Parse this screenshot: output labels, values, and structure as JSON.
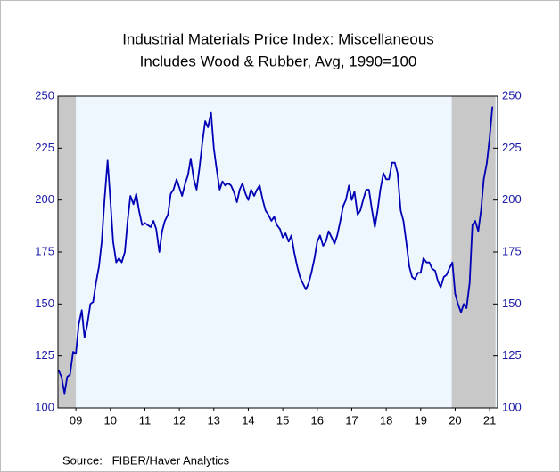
{
  "chart_data": {
    "type": "line",
    "title": "Industrial Materials Price Index: Miscellaneous",
    "subtitle": "Includes Wood & Rubber, Avg, 1990=100",
    "source": "Source:   FIBER/Haver Analytics",
    "color": "#0000b4",
    "shade_color": "#c8c8c8",
    "plot_background": "#eef6fe",
    "shaded": [
      [
        2008.98,
        2009.5
      ],
      [
        2020.4,
        2021.67
      ]
    ],
    "xlim": [
      2008.98,
      2021.73
    ],
    "ylim": [
      100,
      250
    ],
    "yticks": [
      100,
      125,
      150,
      175,
      200,
      225,
      250
    ],
    "y2lim": [
      100,
      250
    ],
    "y2ticks": [
      100,
      125,
      150,
      175,
      200,
      225,
      250
    ],
    "xticks": [
      {
        "value": 2009.5,
        "label": "09"
      },
      {
        "value": 2010.5,
        "label": "10"
      },
      {
        "value": 2011.5,
        "label": "11"
      },
      {
        "value": 2012.5,
        "label": "12"
      },
      {
        "value": 2013.5,
        "label": "13"
      },
      {
        "value": 2014.5,
        "label": "14"
      },
      {
        "value": 2015.5,
        "label": "15"
      },
      {
        "value": 2016.5,
        "label": "16"
      },
      {
        "value": 2017.5,
        "label": "17"
      },
      {
        "value": 2018.5,
        "label": "18"
      },
      {
        "value": 2019.5,
        "label": "19"
      },
      {
        "value": 2020.5,
        "label": "20"
      },
      {
        "value": 2021.5,
        "label": "21"
      }
    ],
    "x": [
      2009.0,
      2009.08,
      2009.17,
      2009.25,
      2009.33,
      2009.42,
      2009.5,
      2009.58,
      2009.67,
      2009.75,
      2009.83,
      2009.92,
      2010.0,
      2010.08,
      2010.17,
      2010.25,
      2010.33,
      2010.42,
      2010.5,
      2010.58,
      2010.67,
      2010.75,
      2010.83,
      2010.92,
      2011.0,
      2011.08,
      2011.17,
      2011.25,
      2011.33,
      2011.42,
      2011.5,
      2011.58,
      2011.67,
      2011.75,
      2011.83,
      2011.92,
      2012.0,
      2012.08,
      2012.17,
      2012.25,
      2012.33,
      2012.42,
      2012.5,
      2012.58,
      2012.67,
      2012.75,
      2012.83,
      2012.92,
      2013.0,
      2013.08,
      2013.17,
      2013.25,
      2013.33,
      2013.42,
      2013.5,
      2013.58,
      2013.67,
      2013.75,
      2013.83,
      2013.92,
      2014.0,
      2014.08,
      2014.17,
      2014.25,
      2014.33,
      2014.42,
      2014.5,
      2014.58,
      2014.67,
      2014.75,
      2014.83,
      2014.92,
      2015.0,
      2015.08,
      2015.17,
      2015.25,
      2015.33,
      2015.42,
      2015.5,
      2015.58,
      2015.67,
      2015.75,
      2015.83,
      2015.92,
      2016.0,
      2016.08,
      2016.17,
      2016.25,
      2016.33,
      2016.42,
      2016.5,
      2016.58,
      2016.67,
      2016.75,
      2016.83,
      2016.92,
      2017.0,
      2017.08,
      2017.17,
      2017.25,
      2017.33,
      2017.42,
      2017.5,
      2017.58,
      2017.67,
      2017.75,
      2017.83,
      2017.92,
      2018.0,
      2018.08,
      2018.17,
      2018.25,
      2018.33,
      2018.42,
      2018.5,
      2018.58,
      2018.67,
      2018.75,
      2018.83,
      2018.92,
      2019.0,
      2019.08,
      2019.17,
      2019.25,
      2019.33,
      2019.42,
      2019.5,
      2019.58,
      2019.67,
      2019.75,
      2019.83,
      2019.92,
      2020.0,
      2020.08,
      2020.17,
      2020.25,
      2020.33,
      2020.42,
      2020.5,
      2020.58,
      2020.67,
      2020.75,
      2020.83,
      2020.92,
      2021.0,
      2021.08,
      2021.17,
      2021.25,
      2021.33,
      2021.42,
      2021.5,
      2021.58
    ],
    "values": [
      118,
      115,
      107,
      115,
      116,
      127,
      126,
      140,
      147,
      134,
      140,
      150,
      151,
      160,
      168,
      180,
      200,
      219,
      200,
      180,
      170,
      172,
      170,
      175,
      190,
      202,
      198,
      203,
      195,
      188,
      189,
      188,
      187,
      190,
      186,
      175,
      185,
      190,
      193,
      203,
      205,
      210,
      206,
      202,
      208,
      212,
      220,
      210,
      205,
      215,
      228,
      238,
      235,
      242,
      225,
      215,
      205,
      209,
      207,
      208,
      207,
      204,
      199,
      205,
      208,
      203,
      200,
      205,
      202,
      205,
      207,
      200,
      195,
      193,
      190,
      192,
      188,
      186,
      182,
      184,
      180,
      183,
      175,
      168,
      163,
      160,
      157,
      160,
      165,
      172,
      180,
      183,
      178,
      180,
      185,
      182,
      179,
      183,
      190,
      197,
      200,
      207,
      200,
      204,
      193,
      195,
      200,
      205,
      205,
      196,
      187,
      195,
      205,
      213,
      210,
      210,
      218,
      218,
      213,
      195,
      190,
      180,
      168,
      163,
      162,
      165,
      165,
      172,
      170,
      170,
      167,
      166,
      161,
      158,
      163,
      164,
      167,
      170,
      155,
      150,
      146,
      150,
      148,
      160,
      188,
      190,
      185,
      195,
      210,
      218,
      230,
      245
    ]
  }
}
